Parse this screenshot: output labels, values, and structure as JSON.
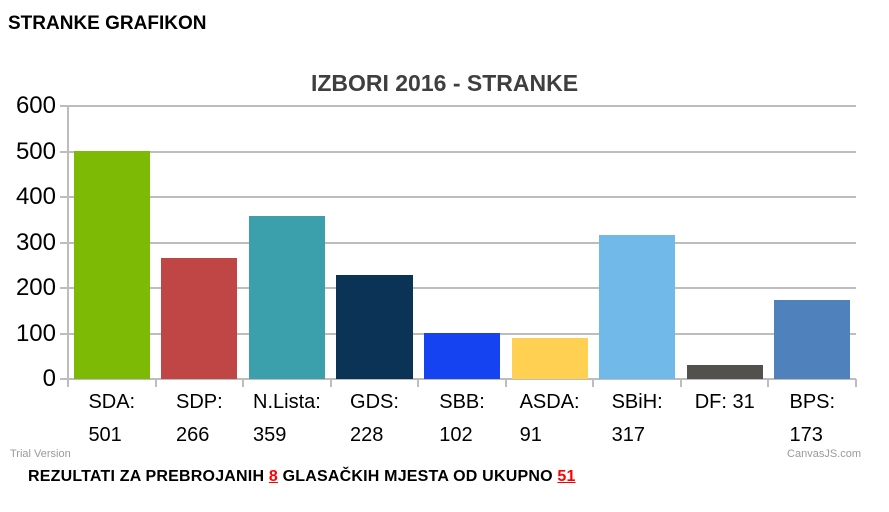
{
  "page": {
    "heading": "STRANKE GRAFIKON",
    "trial_version": "Trial Version",
    "watermark": "CanvasJS.com"
  },
  "chart_data": {
    "type": "bar",
    "title": "IZBORI 2016 - STRANKE",
    "categories": [
      "SDA",
      "SDP",
      "N.Lista",
      "GDS",
      "SBB",
      "ASDA",
      "SBiH",
      "DF",
      "BPS"
    ],
    "values": [
      501,
      266,
      359,
      228,
      102,
      91,
      317,
      31,
      173
    ],
    "bar_colors": [
      "#7CBA06",
      "#C04545",
      "#3BA0AC",
      "#0A3356",
      "#1543F2",
      "#FFD051",
      "#70B9E9",
      "#52514E",
      "#4F81BC"
    ],
    "label_lines": [
      [
        "SDA:",
        "501"
      ],
      [
        "SDP:",
        "266"
      ],
      [
        "N.Lista:",
        "359"
      ],
      [
        "GDS:",
        "228"
      ],
      [
        "SBB:",
        "102"
      ],
      [
        "ASDA:",
        "91"
      ],
      [
        "SBiH:",
        "317"
      ],
      [
        "DF: 31"
      ],
      [
        "BPS:",
        "173"
      ]
    ],
    "xlabel": "",
    "ylabel": "",
    "ylim": [
      0,
      600
    ],
    "ytick_step": 100,
    "grid": true,
    "legend_position": "none",
    "axis_color": "#BDBDBD",
    "text_color": "#000000",
    "title_color": "#3F3F3F"
  },
  "footer": {
    "prefix": "REZULTATI ZA PREBROJANIH",
    "counted": "8",
    "middle": "GLASAČKIH MJESTA OD UKUPNO",
    "total": "51",
    "highlight_color": "#FF0000"
  }
}
